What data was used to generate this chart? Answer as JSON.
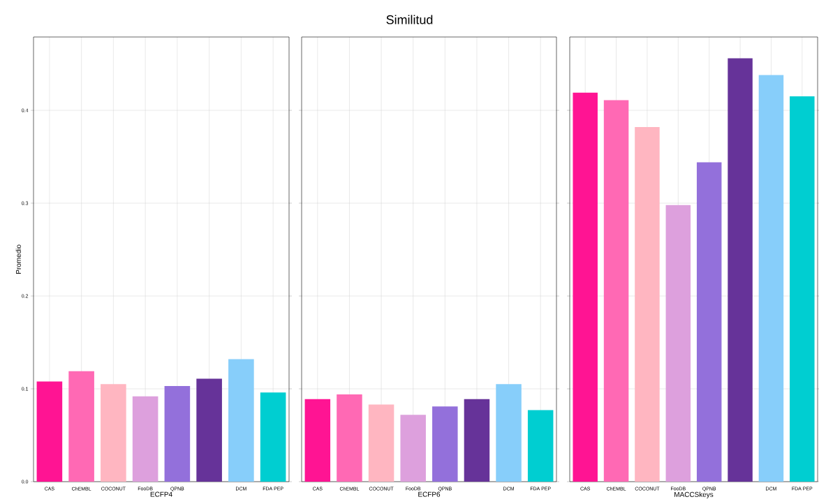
{
  "chart_data": [
    {
      "type": "bar",
      "xlabel": "ECFP4",
      "ylabel": "Promedio",
      "categories": [
        "CAS",
        "ChEMBL",
        "COCONUT",
        "FooDB",
        "QPNB",
        null,
        "DCM",
        "FDA PEP"
      ],
      "values": [
        0.108,
        0.119,
        0.105,
        0.092,
        0.103,
        0.111,
        0.132,
        0.096
      ],
      "colors": [
        "#ff1493",
        "#ff69b4",
        "#ffb6c1",
        "#dda0dd",
        "#9370db",
        "#663399",
        "#87cefa",
        "#00ced1"
      ],
      "ylim": [
        0,
        0.479
      ],
      "yticks": [
        {
          "value": 0,
          "label": "0.0"
        },
        0.1,
        0.2,
        0.3,
        0.4
      ],
      "grid": true
    },
    {
      "type": "bar",
      "title": "Similitud",
      "xlabel": "ECFP6",
      "categories": [
        "CAS",
        "ChEMBL",
        "COCONUT",
        "FooDB",
        "QPNB",
        null,
        "DCM",
        "FDA PEP"
      ],
      "values": [
        0.089,
        0.094,
        0.083,
        0.072,
        0.081,
        0.089,
        0.105,
        0.077
      ],
      "colors": [
        "#ff1493",
        "#ff69b4",
        "#ffb6c1",
        "#dda0dd",
        "#9370db",
        "#663399",
        "#87cefa",
        "#00ced1"
      ],
      "ylim": [
        0,
        0.479
      ],
      "yticks": [
        0,
        0.1,
        0.2,
        0.3,
        0.4
      ],
      "grid": true,
      "tick_labels": "x"
    },
    {
      "type": "bar",
      "xlabel": "MACCSkeys",
      "categories": [
        "CAS",
        "ChEMBL",
        "COCONUT",
        "FooDB",
        "QPNB",
        null,
        "DCM",
        "FDA PEP"
      ],
      "values": [
        0.419,
        0.411,
        0.382,
        0.298,
        0.344,
        0.456,
        0.438,
        0.415
      ],
      "colors": [
        "#ff1493",
        "#ff69b4",
        "#ffb6c1",
        "#dda0dd",
        "#9370db",
        "#663399",
        "#87cefa",
        "#00ced1"
      ],
      "ylim": [
        0,
        0.479
      ],
      "yticks": [
        0,
        0.1,
        0.2,
        0.3,
        0.4
      ],
      "grid": true,
      "tick_labels": "x"
    }
  ]
}
